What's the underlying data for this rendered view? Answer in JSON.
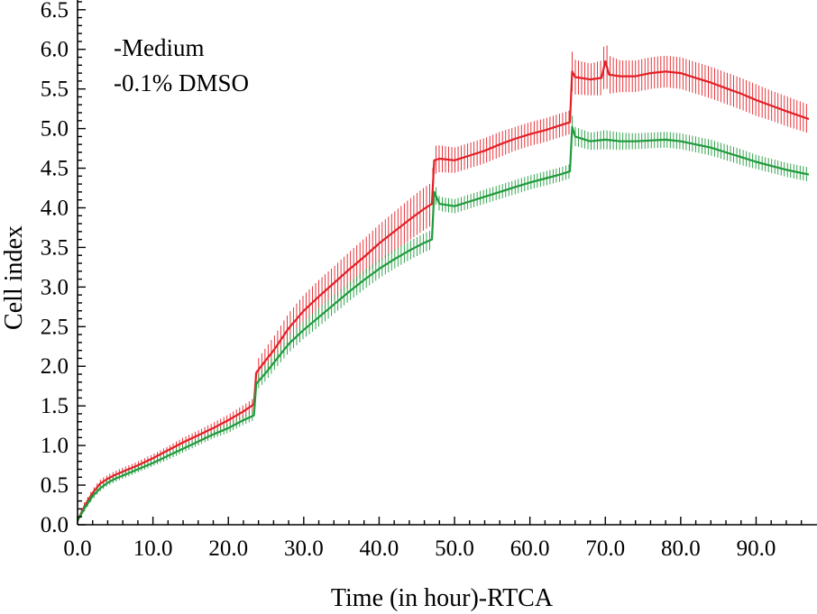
{
  "chart_data": {
    "type": "line",
    "title": "",
    "xlabel": "Time (in hour)-RTCA",
    "ylabel": "Cell index",
    "xlim": [
      0,
      97
    ],
    "ylim": [
      0,
      6.6
    ],
    "xticks": [
      0,
      10,
      20,
      30,
      40,
      50,
      60,
      70,
      80,
      90
    ],
    "xtick_labels": [
      "0.0",
      "10.0",
      "20.0",
      "30.0",
      "40.0",
      "50.0",
      "60.0",
      "70.0",
      "80.0",
      "90.0"
    ],
    "yticks": [
      0,
      0.5,
      1,
      1.5,
      2,
      2.5,
      3,
      3.5,
      4,
      4.5,
      5,
      5.5,
      6,
      6.5
    ],
    "ytick_labels": [
      "0.0",
      "0.5",
      "1.0",
      "1.5",
      "2.0",
      "2.5",
      "3.0",
      "3.5",
      "4.0",
      "4.5",
      "5.0",
      "5.5",
      "6.0",
      "6.5"
    ],
    "grid": false,
    "legend": "top-left",
    "series": [
      {
        "name": "-Medium",
        "color": "#e21f26",
        "x": [
          0,
          1,
          2,
          3,
          4,
          5,
          6,
          8,
          10,
          12,
          14,
          16,
          18,
          20,
          22,
          23.4,
          23.7,
          25,
          26,
          28,
          30,
          32,
          34,
          36,
          38,
          40,
          42,
          44,
          46,
          47,
          47.3,
          48,
          50,
          52,
          54,
          56,
          58,
          60,
          62,
          64,
          65.3,
          65.6,
          66,
          68,
          69.5,
          70,
          70.5,
          72,
          74,
          76,
          78,
          80,
          82,
          84,
          86,
          88,
          90,
          92,
          94,
          97
        ],
        "values": [
          0.05,
          0.25,
          0.4,
          0.52,
          0.58,
          0.63,
          0.67,
          0.75,
          0.84,
          0.94,
          1.04,
          1.13,
          1.22,
          1.32,
          1.43,
          1.52,
          1.92,
          2.08,
          2.2,
          2.48,
          2.7,
          2.88,
          3.05,
          3.22,
          3.38,
          3.55,
          3.7,
          3.85,
          3.99,
          4.05,
          4.6,
          4.62,
          4.6,
          4.66,
          4.72,
          4.8,
          4.87,
          4.93,
          4.98,
          5.04,
          5.08,
          5.72,
          5.65,
          5.62,
          5.64,
          5.85,
          5.68,
          5.66,
          5.66,
          5.7,
          5.72,
          5.7,
          5.64,
          5.58,
          5.51,
          5.44,
          5.36,
          5.29,
          5.22,
          5.12
        ],
        "errors": [
          0.03,
          0.05,
          0.05,
          0.05,
          0.05,
          0.05,
          0.05,
          0.05,
          0.05,
          0.05,
          0.06,
          0.06,
          0.07,
          0.07,
          0.08,
          0.08,
          0.14,
          0.16,
          0.17,
          0.19,
          0.2,
          0.21,
          0.21,
          0.22,
          0.23,
          0.24,
          0.25,
          0.26,
          0.27,
          0.27,
          0.18,
          0.17,
          0.16,
          0.16,
          0.16,
          0.16,
          0.15,
          0.15,
          0.15,
          0.15,
          0.15,
          0.25,
          0.22,
          0.2,
          0.22,
          0.3,
          0.24,
          0.2,
          0.2,
          0.2,
          0.2,
          0.2,
          0.2,
          0.2,
          0.2,
          0.2,
          0.2,
          0.19,
          0.19,
          0.18
        ]
      },
      {
        "name": "-0.1% DMSO",
        "color": "#1f9a3c",
        "x": [
          0,
          1,
          2,
          3,
          4,
          5,
          6,
          8,
          10,
          12,
          14,
          16,
          18,
          20,
          22,
          23.4,
          23.7,
          25,
          26,
          28,
          30,
          32,
          34,
          36,
          38,
          40,
          42,
          44,
          46,
          47,
          47.3,
          48,
          50,
          52,
          54,
          56,
          58,
          60,
          62,
          64,
          65.3,
          65.6,
          66,
          68,
          70,
          72,
          74,
          76,
          78,
          80,
          82,
          84,
          86,
          88,
          90,
          92,
          94,
          97
        ],
        "values": [
          0.05,
          0.22,
          0.36,
          0.46,
          0.53,
          0.58,
          0.62,
          0.7,
          0.78,
          0.87,
          0.96,
          1.05,
          1.14,
          1.22,
          1.32,
          1.38,
          1.78,
          1.92,
          2.04,
          2.28,
          2.46,
          2.62,
          2.78,
          2.94,
          3.09,
          3.23,
          3.35,
          3.46,
          3.56,
          3.6,
          4.2,
          4.05,
          4.02,
          4.08,
          4.14,
          4.2,
          4.26,
          4.32,
          4.37,
          4.42,
          4.46,
          5.02,
          4.9,
          4.84,
          4.86,
          4.84,
          4.84,
          4.85,
          4.86,
          4.84,
          4.8,
          4.76,
          4.7,
          4.64,
          4.58,
          4.53,
          4.48,
          4.42
        ],
        "errors": [
          0.03,
          0.04,
          0.04,
          0.04,
          0.04,
          0.04,
          0.04,
          0.04,
          0.04,
          0.05,
          0.05,
          0.05,
          0.05,
          0.06,
          0.06,
          0.06,
          0.09,
          0.1,
          0.1,
          0.11,
          0.11,
          0.12,
          0.12,
          0.12,
          0.12,
          0.12,
          0.12,
          0.12,
          0.12,
          0.12,
          0.12,
          0.09,
          0.09,
          0.09,
          0.09,
          0.09,
          0.09,
          0.09,
          0.09,
          0.09,
          0.09,
          0.14,
          0.12,
          0.11,
          0.12,
          0.11,
          0.1,
          0.1,
          0.1,
          0.1,
          0.1,
          0.1,
          0.1,
          0.1,
          0.09,
          0.09,
          0.09,
          0.09
        ]
      }
    ]
  }
}
